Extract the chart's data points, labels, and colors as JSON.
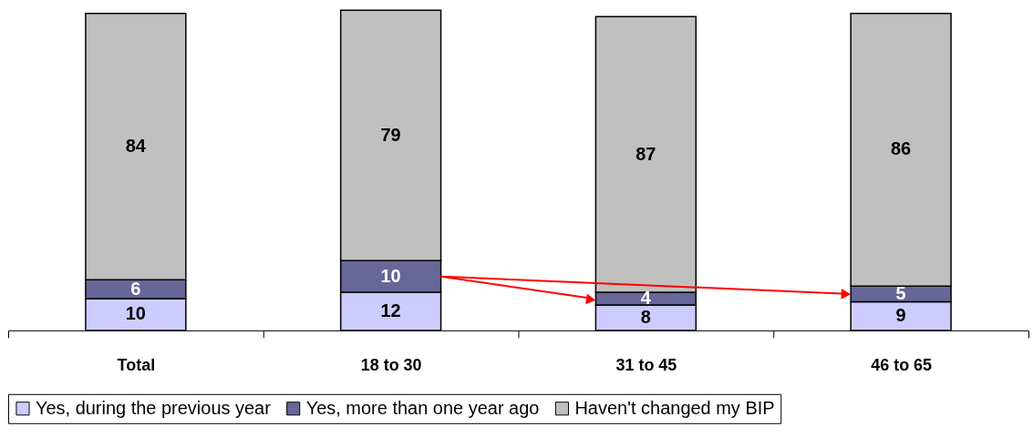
{
  "chart_data": {
    "type": "bar",
    "stacked": true,
    "categories": [
      "Total",
      "18 to 30",
      "31 to 45",
      "46 to 65"
    ],
    "series": [
      {
        "name": "Yes, during the previous year",
        "color": "#ccccff",
        "values": [
          10,
          12,
          8,
          9
        ]
      },
      {
        "name": "Yes, more than one year ago",
        "color": "#666699",
        "values": [
          6,
          10,
          4,
          5
        ]
      },
      {
        "name": "Haven't changed my BIP",
        "color": "#c0c0c0",
        "values": [
          84,
          79,
          87,
          86
        ]
      }
    ],
    "data_labels": true,
    "legend": "bottom",
    "grid": false
  }
}
